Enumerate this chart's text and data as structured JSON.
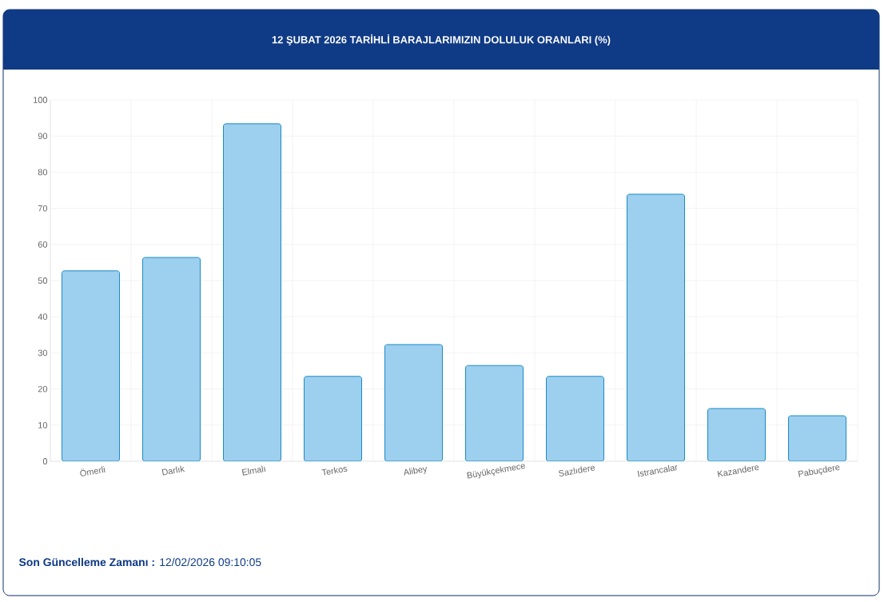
{
  "chart_data": {
    "type": "bar",
    "title": "12 ŞUBAT 2026 TARİHLİ BARAJLARIMIZIN DOLULUK ORANLARI (%)",
    "categories": [
      "Ömerli",
      "Darlık",
      "Elmalı",
      "Terkos",
      "Alibey",
      "Büyükçekmece",
      "Sazlıdere",
      "Istrancalar",
      "Kazandere",
      "Pabuçdere"
    ],
    "values": [
      52.7,
      56.4,
      93.4,
      23.5,
      32.3,
      26.5,
      23.5,
      73.9,
      14.6,
      12.6
    ],
    "color": "#9dd0ee",
    "ylim": [
      0,
      100
    ],
    "yticks": [
      0,
      10,
      20,
      30,
      40,
      50,
      60,
      70,
      80,
      90,
      100
    ],
    "grid": true,
    "annotations": [
      "**Son Güncelleme Zamanı :** 12/02/2026 09:10:05"
    ]
  }
}
